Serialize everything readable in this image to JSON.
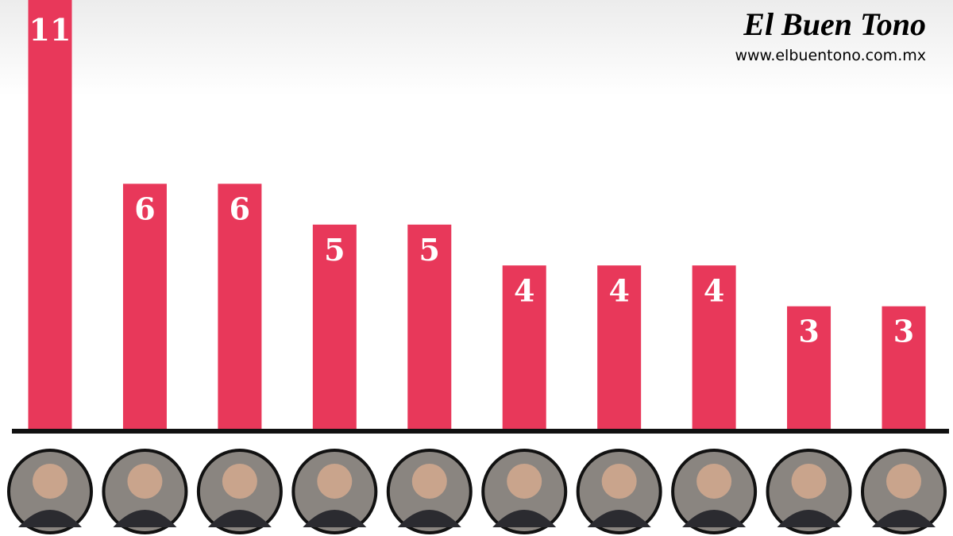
{
  "chart_data": {
    "type": "bar",
    "title": "El Buen Tono",
    "subtitle": "www.elbuentono.com.mx",
    "categories": [
      null,
      null,
      null,
      null,
      null,
      null,
      null,
      null,
      null,
      null
    ],
    "values": [
      11,
      6,
      6,
      5,
      5,
      4,
      4,
      4,
      3,
      3
    ],
    "color": "#e8385a",
    "ylim": [
      0,
      10.5
    ]
  }
}
